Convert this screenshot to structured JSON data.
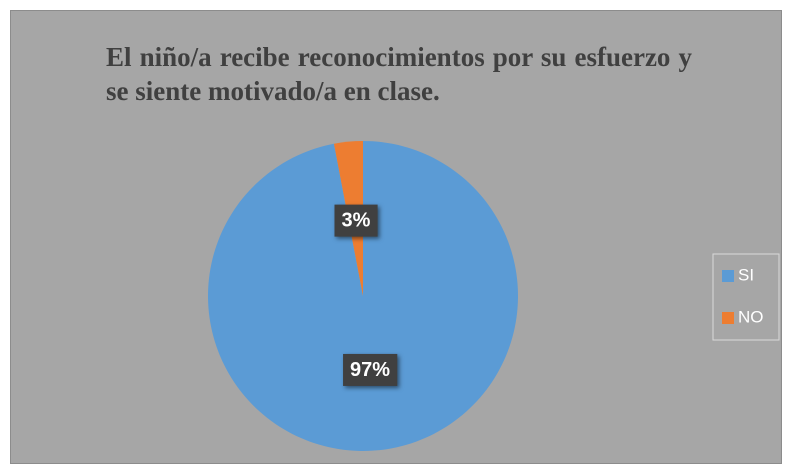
{
  "chart_data": {
    "type": "pie",
    "title": "El niño/a recibe reconocimientos por su esfuerzo y se siente motivado/a en clase.",
    "categories": [
      "SI",
      "NO"
    ],
    "values": [
      97,
      3
    ],
    "value_labels": [
      "97%",
      "3%"
    ],
    "colors": [
      "#5b9bd5",
      "#ed7d31"
    ],
    "legend": "right"
  }
}
